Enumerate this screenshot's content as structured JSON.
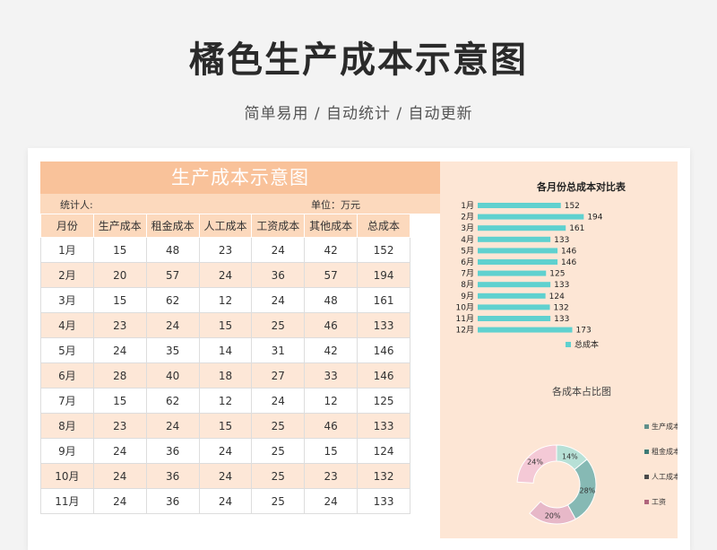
{
  "page": {
    "title": "橘色生产成本示意图",
    "subtitle": "简单易用 / 自动统计 / 自动更新"
  },
  "sheet": {
    "title": "生产成本示意图",
    "stat_label": "统计人:",
    "unit_label": "单位：万元",
    "columns": [
      "月份",
      "生产成本",
      "租金成本",
      "人工成本",
      "工资成本",
      "其他成本",
      "总成本"
    ],
    "rows": [
      [
        "1月",
        "15",
        "48",
        "23",
        "24",
        "42",
        "152"
      ],
      [
        "2月",
        "20",
        "57",
        "24",
        "36",
        "57",
        "194"
      ],
      [
        "3月",
        "15",
        "62",
        "12",
        "24",
        "48",
        "161"
      ],
      [
        "4月",
        "23",
        "24",
        "15",
        "25",
        "46",
        "133"
      ],
      [
        "5月",
        "24",
        "35",
        "14",
        "31",
        "42",
        "146"
      ],
      [
        "6月",
        "28",
        "40",
        "18",
        "27",
        "33",
        "146"
      ],
      [
        "7月",
        "15",
        "62",
        "12",
        "24",
        "12",
        "125"
      ],
      [
        "8月",
        "23",
        "24",
        "15",
        "25",
        "46",
        "133"
      ],
      [
        "9月",
        "24",
        "36",
        "24",
        "25",
        "15",
        "124"
      ],
      [
        "10月",
        "24",
        "36",
        "24",
        "25",
        "23",
        "132"
      ],
      [
        "11月",
        "24",
        "36",
        "24",
        "25",
        "24",
        "133"
      ]
    ]
  },
  "chart_data": [
    {
      "type": "bar",
      "title": "各月份总成本对比表",
      "categories": [
        "1月",
        "2月",
        "3月",
        "4月",
        "5月",
        "6月",
        "7月",
        "8月",
        "9月",
        "10月",
        "11月",
        "12月"
      ],
      "series": [
        {
          "name": "总成本",
          "values": [
            152,
            194,
            161,
            133,
            146,
            146,
            125,
            133,
            124,
            132,
            133,
            173
          ]
        }
      ],
      "legend": "bottom",
      "color": "#5fd1cf"
    },
    {
      "type": "pie",
      "title": "各成本占比图",
      "labels": [
        "14%",
        "28%",
        "20%",
        "24%"
      ],
      "values": [
        14,
        28,
        20,
        24
      ],
      "colors": [
        "#b7e0d6",
        "#86b9b4",
        "#e7b8c8",
        "#f4c9d6"
      ],
      "legend": [
        "生产成本",
        "租金成本",
        "人工成本",
        "工资"
      ],
      "legend_colors": [
        "#5f8f8a",
        "#3d7a76",
        "#4a4a4a",
        "#b0657d"
      ]
    }
  ]
}
